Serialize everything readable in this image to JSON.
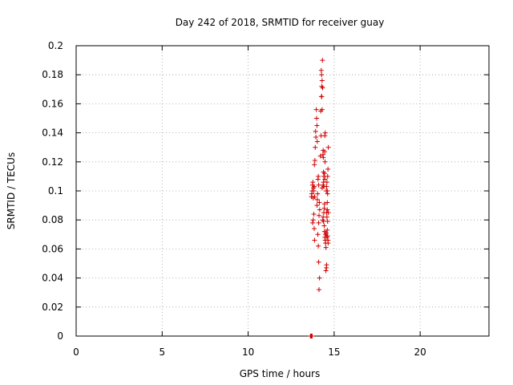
{
  "chart_data": {
    "type": "scatter",
    "title": "Day 242 of 2018, SRMTID for receiver guay",
    "xlabel": "GPS time / hours",
    "ylabel": "SRMTID / TECUs",
    "xlim": [
      0,
      24
    ],
    "ylim": [
      0,
      0.2
    ],
    "xticks": [
      0,
      5,
      10,
      15,
      20
    ],
    "xtick_labels": [
      "0",
      "5",
      "10",
      "15",
      "20"
    ],
    "yticks": [
      0,
      0.02,
      0.04,
      0.06,
      0.08,
      0.1,
      0.12,
      0.14,
      0.16,
      0.18,
      0.2
    ],
    "ytick_labels": [
      "0",
      "0.02",
      "0.04",
      "0.06",
      "0.08",
      "0.1",
      "0.12",
      "0.14",
      "0.16",
      "0.18",
      "0.2"
    ],
    "grid": true,
    "marker": "+",
    "color": "#d00000",
    "series": [
      {
        "name": "SRMTID",
        "points": [
          [
            13.62,
            0.0
          ],
          [
            13.64,
            0.0
          ],
          [
            13.66,
            0.0
          ],
          [
            13.68,
            0.0
          ],
          [
            13.7,
            0.0
          ],
          [
            13.72,
            0.0
          ],
          [
            13.68,
            0.096
          ],
          [
            13.7,
            0.098
          ],
          [
            13.72,
            0.1
          ],
          [
            13.74,
            0.104
          ],
          [
            13.76,
            0.106
          ],
          [
            13.78,
            0.095
          ],
          [
            13.8,
            0.102
          ],
          [
            13.82,
            0.1
          ],
          [
            13.84,
            0.103
          ],
          [
            13.86,
            0.096
          ],
          [
            13.75,
            0.078
          ],
          [
            13.78,
            0.08
          ],
          [
            13.82,
            0.084
          ],
          [
            13.84,
            0.074
          ],
          [
            13.86,
            0.066
          ],
          [
            13.85,
            0.118
          ],
          [
            13.88,
            0.121
          ],
          [
            13.9,
            0.13
          ],
          [
            13.92,
            0.141
          ],
          [
            13.94,
            0.137
          ],
          [
            13.96,
            0.156
          ],
          [
            13.98,
            0.15
          ],
          [
            14.0,
            0.145
          ],
          [
            14.02,
            0.134
          ],
          [
            14.0,
            0.09
          ],
          [
            14.02,
            0.094
          ],
          [
            14.04,
            0.098
          ],
          [
            14.06,
            0.108
          ],
          [
            14.08,
            0.11
          ],
          [
            14.1,
            0.104
          ],
          [
            14.05,
            0.07
          ],
          [
            14.08,
            0.062
          ],
          [
            14.1,
            0.078
          ],
          [
            14.12,
            0.083
          ],
          [
            14.14,
            0.092
          ],
          [
            14.16,
            0.087
          ],
          [
            14.1,
            0.051
          ],
          [
            14.15,
            0.04
          ],
          [
            14.12,
            0.032
          ],
          [
            14.2,
            0.124
          ],
          [
            14.22,
            0.155
          ],
          [
            14.24,
            0.138
          ],
          [
            14.26,
            0.165
          ],
          [
            14.28,
            0.172
          ],
          [
            14.3,
            0.176
          ],
          [
            14.27,
            0.18
          ],
          [
            14.25,
            0.183
          ],
          [
            14.32,
            0.19
          ],
          [
            14.3,
            0.156
          ],
          [
            14.33,
            0.171
          ],
          [
            14.28,
            0.165
          ],
          [
            14.35,
            0.125
          ],
          [
            14.37,
            0.123
          ],
          [
            14.36,
            0.128
          ],
          [
            14.38,
            0.113
          ],
          [
            14.4,
            0.11
          ],
          [
            14.38,
            0.106
          ],
          [
            14.36,
            0.104
          ],
          [
            14.4,
            0.103
          ],
          [
            14.34,
            0.08
          ],
          [
            14.36,
            0.082
          ],
          [
            14.38,
            0.079
          ],
          [
            14.4,
            0.085
          ],
          [
            14.42,
            0.088
          ],
          [
            14.44,
            0.091
          ],
          [
            14.46,
            0.138
          ],
          [
            14.48,
            0.14
          ],
          [
            14.45,
            0.127
          ],
          [
            14.47,
            0.12
          ],
          [
            14.44,
            0.112
          ],
          [
            14.46,
            0.108
          ],
          [
            14.42,
            0.076
          ],
          [
            14.44,
            0.072
          ],
          [
            14.46,
            0.068
          ],
          [
            14.48,
            0.066
          ],
          [
            14.5,
            0.064
          ],
          [
            14.52,
            0.061
          ],
          [
            14.5,
            0.07
          ],
          [
            14.55,
            0.047
          ],
          [
            14.52,
            0.045
          ],
          [
            14.56,
            0.049
          ],
          [
            14.54,
            0.1
          ],
          [
            14.56,
            0.103
          ],
          [
            14.58,
            0.106
          ],
          [
            14.6,
            0.1
          ],
          [
            14.62,
            0.098
          ],
          [
            14.56,
            0.085
          ],
          [
            14.58,
            0.082
          ],
          [
            14.6,
            0.087
          ],
          [
            14.62,
            0.079
          ],
          [
            14.6,
            0.073
          ],
          [
            14.62,
            0.069
          ],
          [
            14.64,
            0.066
          ],
          [
            14.65,
            0.064
          ],
          [
            14.66,
            0.13
          ],
          [
            14.64,
            0.115
          ],
          [
            14.62,
            0.11
          ],
          [
            14.6,
            0.092
          ],
          [
            14.66,
            0.085
          ],
          [
            14.58,
            0.068
          ],
          [
            14.54,
            0.071
          ],
          [
            14.3,
            0.102
          ]
        ]
      }
    ]
  }
}
